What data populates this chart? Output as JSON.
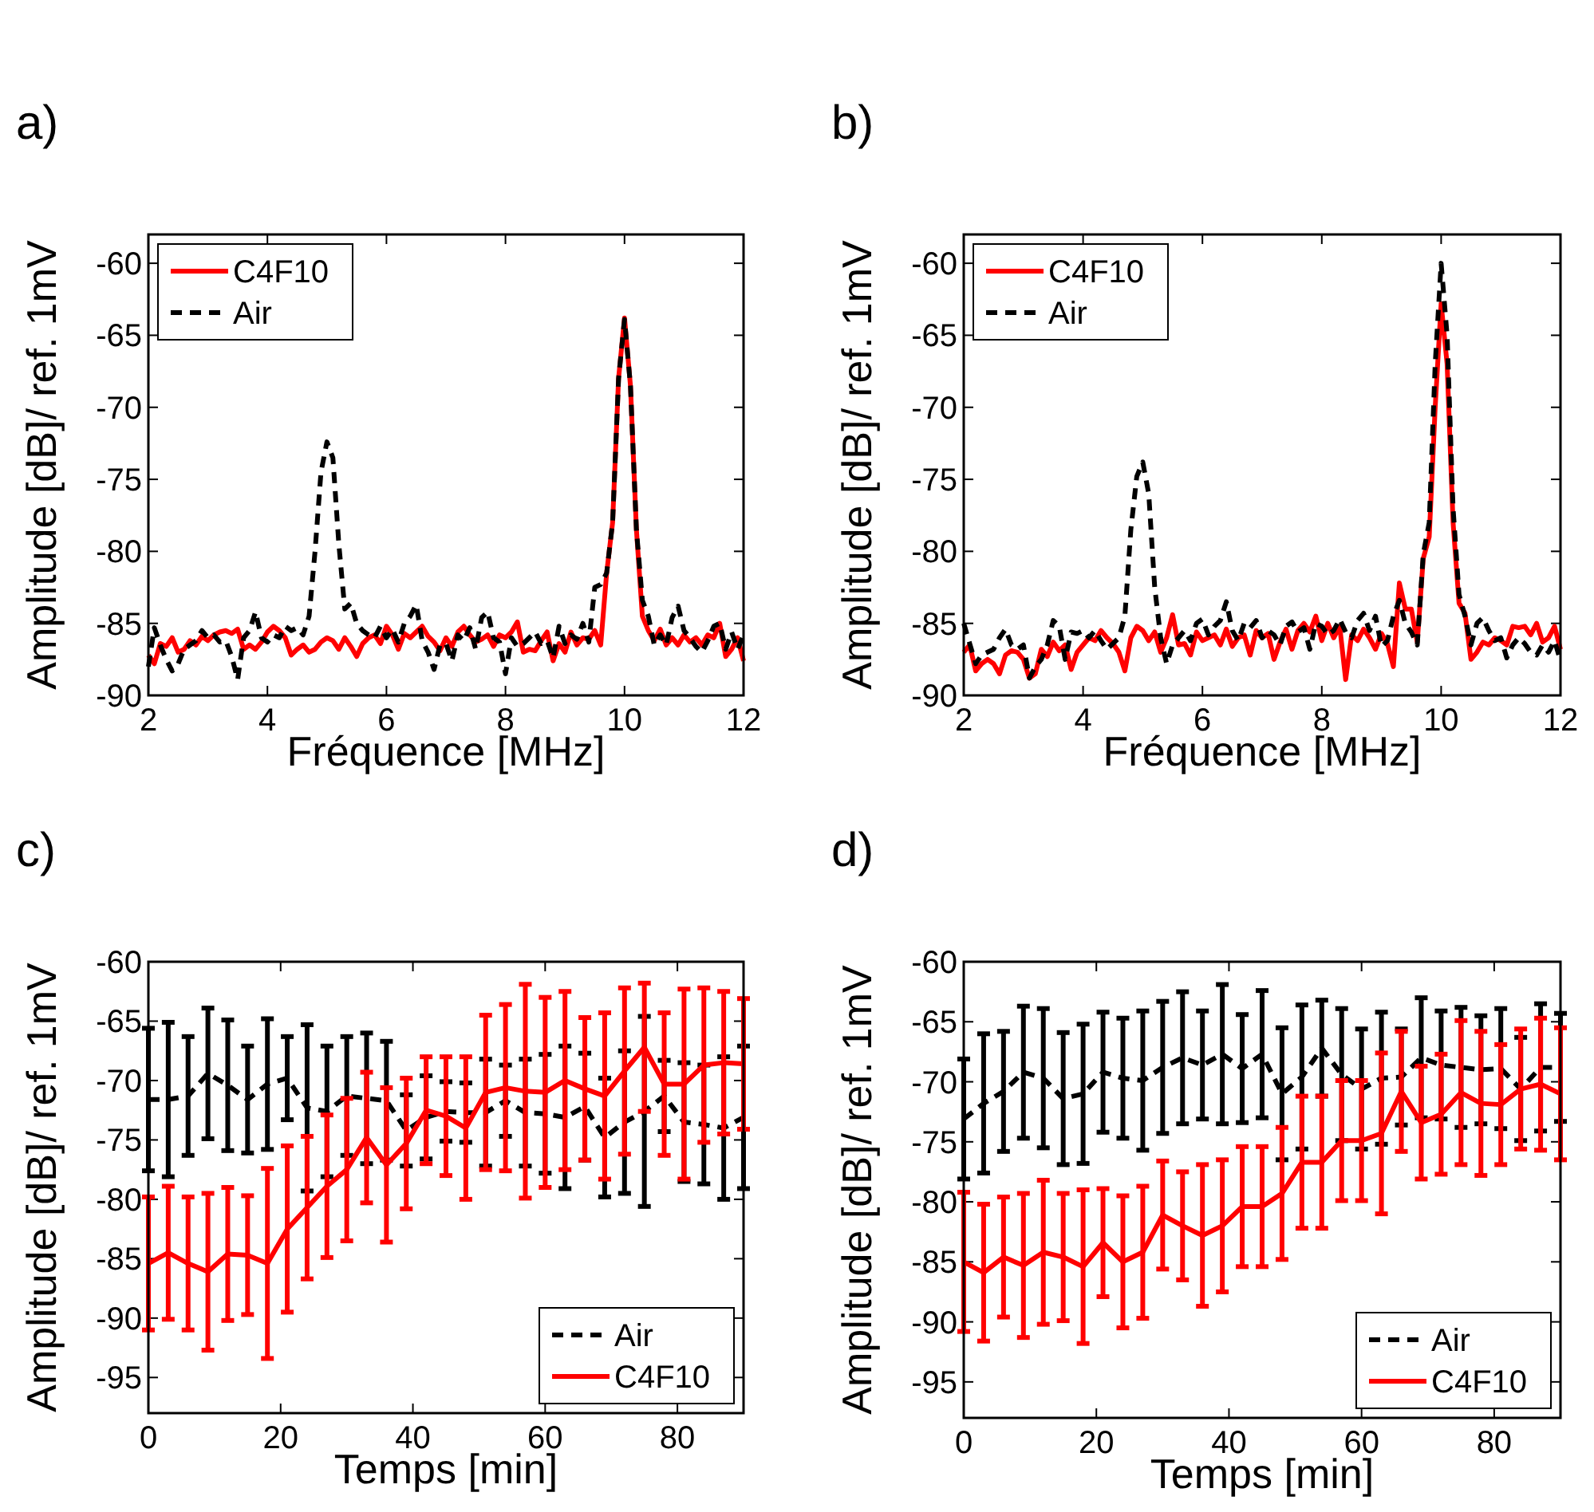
{
  "chart_data": [
    {
      "type": "line",
      "title": "a)",
      "xlabel": "Fréquence [MHz]",
      "ylabel": "Amplitude [dB]/ ref. 1mV",
      "xlim": [
        2,
        12
      ],
      "ylim": [
        -90,
        -58
      ],
      "xticks": [
        2,
        4,
        6,
        8,
        10,
        12
      ],
      "yticks": [
        -90,
        -85,
        -80,
        -75,
        -70,
        -65,
        -60
      ],
      "legend": "top left",
      "marker": "none",
      "x": [
        2.0,
        2.1,
        2.2,
        2.3,
        2.4,
        2.5,
        2.6,
        2.7,
        2.8,
        2.9,
        3.0,
        3.1,
        3.2,
        3.3,
        3.4,
        3.5,
        3.6,
        3.7,
        3.8,
        3.9,
        4.0,
        4.1,
        4.2,
        4.3,
        4.4,
        4.5,
        4.6,
        4.7,
        4.8,
        4.9,
        5.0,
        5.1,
        5.2,
        5.3,
        5.4,
        5.5,
        5.6,
        5.7,
        5.8,
        5.9,
        6.0,
        6.1,
        6.2,
        6.3,
        6.4,
        6.5,
        6.6,
        6.7,
        6.8,
        6.9,
        7.0,
        7.1,
        7.2,
        7.3,
        7.4,
        7.5,
        7.6,
        7.7,
        7.8,
        7.9,
        8.0,
        8.1,
        8.2,
        8.3,
        8.4,
        8.5,
        8.6,
        8.7,
        8.8,
        8.9,
        9.0,
        9.1,
        9.2,
        9.3,
        9.4,
        9.5,
        9.6,
        9.7,
        9.8,
        9.9,
        10.0,
        10.1,
        10.2,
        10.3,
        10.4,
        10.5,
        10.6,
        10.7,
        10.8,
        10.9,
        11.0,
        11.1,
        11.2,
        11.3,
        11.4,
        11.5,
        11.6,
        11.7,
        11.8,
        11.9,
        12.0
      ],
      "series": [
        {
          "name": "C4F10",
          "color": "#ff0000",
          "line_style": "solid",
          "values": [
            -87.2,
            -87.8,
            -86.4,
            -86.6,
            -86.0,
            -87.0,
            -86.8,
            -86.2,
            -86.5,
            -85.9,
            -86.2,
            -85.8,
            -85.6,
            -85.5,
            -85.7,
            -85.4,
            -86.8,
            -86.5,
            -86.8,
            -86.3,
            -85.6,
            -85.2,
            -85.5,
            -86.0,
            -87.2,
            -86.8,
            -86.5,
            -87.0,
            -86.8,
            -86.3,
            -86.0,
            -86.2,
            -86.8,
            -86.0,
            -86.6,
            -87.3,
            -86.4,
            -86.0,
            -85.8,
            -86.4,
            -85.2,
            -85.8,
            -86.8,
            -85.7,
            -86.0,
            -85.6,
            -85.2,
            -85.9,
            -86.3,
            -86.9,
            -86.0,
            -86.6,
            -85.6,
            -85.2,
            -85.8,
            -86.3,
            -86.1,
            -85.8,
            -86.6,
            -85.8,
            -86.0,
            -85.6,
            -84.9,
            -87.0,
            -86.8,
            -86.9,
            -86.2,
            -85.6,
            -87.6,
            -86.4,
            -87.0,
            -85.6,
            -86.5,
            -86.0,
            -86.1,
            -85.5,
            -86.5,
            -81.5,
            -78.0,
            -68.0,
            -63.8,
            -68.5,
            -78.5,
            -84.5,
            -85.5,
            -86.2,
            -85.4,
            -86.5,
            -86.0,
            -86.5,
            -85.8,
            -86.3,
            -86.0,
            -86.5,
            -85.8,
            -86.0,
            -85.0,
            -87.3,
            -86.8,
            -86.0,
            -87.6
          ]
        },
        {
          "name": "Air",
          "color": "#000000",
          "line_style": "dashed",
          "values": [
            -88.0,
            -85.3,
            -86.5,
            -87.5,
            -88.3,
            -87.8,
            -86.8,
            -86.5,
            -86.2,
            -85.5,
            -86.0,
            -85.8,
            -86.3,
            -86.2,
            -87.3,
            -88.9,
            -86.0,
            -85.5,
            -84.2,
            -86.0,
            -86.3,
            -85.8,
            -86.0,
            -85.2,
            -85.5,
            -85.3,
            -85.8,
            -84.5,
            -80.0,
            -74.5,
            -72.4,
            -73.5,
            -79.5,
            -84.0,
            -83.6,
            -85.0,
            -85.5,
            -85.8,
            -86.0,
            -85.2,
            -86.0,
            -85.4,
            -86.3,
            -85.0,
            -84.5,
            -83.7,
            -86.2,
            -87.0,
            -88.2,
            -86.5,
            -86.4,
            -87.6,
            -85.8,
            -86.2,
            -85.3,
            -86.8,
            -84.6,
            -84.2,
            -86.0,
            -86.3,
            -88.5,
            -86.0,
            -86.6,
            -86.4,
            -86.0,
            -85.6,
            -86.4,
            -86.2,
            -87.4,
            -85.2,
            -86.4,
            -85.8,
            -86.1,
            -85.0,
            -86.3,
            -82.5,
            -82.3,
            -81.5,
            -78.0,
            -68.0,
            -63.9,
            -68.5,
            -78.5,
            -83.4,
            -84.5,
            -86.5,
            -85.8,
            -86.5,
            -84.6,
            -83.8,
            -85.5,
            -86.0,
            -86.6,
            -87.0,
            -86.2,
            -85.2,
            -85.0,
            -86.8,
            -85.6,
            -86.8,
            -85.8
          ]
        }
      ]
    },
    {
      "type": "line",
      "title": "b)",
      "xlabel": "Fréquence [MHz]",
      "ylabel": "Amplitude [dB]/ ref. 1mV",
      "xlim": [
        2,
        12
      ],
      "ylim": [
        -90,
        -58
      ],
      "xticks": [
        2,
        4,
        6,
        8,
        10,
        12
      ],
      "yticks": [
        -90,
        -85,
        -80,
        -75,
        -70,
        -65,
        -60
      ],
      "legend": "top left",
      "marker": "none",
      "x": [
        2.0,
        2.1,
        2.2,
        2.3,
        2.4,
        2.5,
        2.6,
        2.7,
        2.8,
        2.9,
        3.0,
        3.1,
        3.2,
        3.3,
        3.4,
        3.5,
        3.6,
        3.7,
        3.8,
        3.9,
        4.0,
        4.1,
        4.2,
        4.3,
        4.4,
        4.5,
        4.6,
        4.7,
        4.8,
        4.9,
        5.0,
        5.1,
        5.2,
        5.3,
        5.4,
        5.5,
        5.6,
        5.7,
        5.8,
        5.9,
        6.0,
        6.1,
        6.2,
        6.3,
        6.4,
        6.5,
        6.6,
        6.7,
        6.8,
        6.9,
        7.0,
        7.1,
        7.2,
        7.3,
        7.4,
        7.5,
        7.6,
        7.7,
        7.8,
        7.9,
        8.0,
        8.1,
        8.2,
        8.3,
        8.4,
        8.5,
        8.6,
        8.7,
        8.8,
        8.9,
        9.0,
        9.1,
        9.2,
        9.3,
        9.4,
        9.5,
        9.6,
        9.7,
        9.8,
        9.9,
        10.0,
        10.1,
        10.2,
        10.3,
        10.4,
        10.5,
        10.6,
        10.7,
        10.8,
        10.9,
        11.0,
        11.1,
        11.2,
        11.3,
        11.4,
        11.5,
        11.6,
        11.7,
        11.8,
        11.9,
        12.0
      ],
      "series": [
        {
          "name": "C4F10",
          "color": "#ff0000",
          "line_style": "solid",
          "values": [
            -87.0,
            -86.5,
            -88.3,
            -87.8,
            -87.5,
            -87.8,
            -88.5,
            -87.2,
            -86.9,
            -87.0,
            -87.5,
            -88.8,
            -88.5,
            -86.8,
            -87.3,
            -86.3,
            -86.9,
            -86.5,
            -88.2,
            -87.0,
            -86.5,
            -86.0,
            -86.2,
            -85.5,
            -86.0,
            -86.4,
            -87.0,
            -88.3,
            -86.0,
            -85.2,
            -85.5,
            -86.2,
            -85.6,
            -87.0,
            -86.0,
            -84.4,
            -86.5,
            -86.4,
            -87.2,
            -85.6,
            -86.2,
            -86.0,
            -85.8,
            -86.5,
            -85.4,
            -86.6,
            -86.0,
            -85.8,
            -87.2,
            -85.5,
            -86.0,
            -85.7,
            -87.5,
            -86.3,
            -85.4,
            -86.8,
            -85.5,
            -85.0,
            -85.6,
            -84.5,
            -86.2,
            -85.0,
            -86.0,
            -85.2,
            -88.9,
            -85.8,
            -86.2,
            -85.4,
            -86.0,
            -86.8,
            -85.7,
            -86.4,
            -88.0,
            -82.2,
            -84.0,
            -84.0,
            -86.3,
            -80.5,
            -79.0,
            -70.0,
            -62.8,
            -67.0,
            -78.0,
            -83.6,
            -84.3,
            -87.5,
            -87.0,
            -86.3,
            -86.5,
            -86.0,
            -86.2,
            -86.5,
            -85.2,
            -85.3,
            -85.2,
            -85.8,
            -85.0,
            -86.3,
            -86.0,
            -85.2,
            -86.8
          ]
        },
        {
          "name": "Air",
          "color": "#000000",
          "line_style": "dashed",
          "values": [
            -85.0,
            -86.4,
            -87.8,
            -87.2,
            -87.0,
            -86.8,
            -86.0,
            -85.4,
            -86.5,
            -86.8,
            -86.5,
            -88.8,
            -88.0,
            -87.5,
            -86.5,
            -84.8,
            -85.2,
            -87.5,
            -85.6,
            -85.7,
            -85.5,
            -86.0,
            -85.5,
            -86.2,
            -86.8,
            -86.4,
            -86.0,
            -84.5,
            -78.5,
            -74.8,
            -73.8,
            -76.0,
            -82.5,
            -86.0,
            -87.8,
            -86.5,
            -86.0,
            -85.5,
            -86.2,
            -85.0,
            -84.7,
            -85.8,
            -85.2,
            -84.8,
            -83.5,
            -85.5,
            -86.2,
            -85.0,
            -85.3,
            -84.8,
            -86.0,
            -85.5,
            -85.8,
            -86.5,
            -85.2,
            -84.9,
            -85.6,
            -85.3,
            -86.8,
            -85.0,
            -85.2,
            -85.8,
            -85.5,
            -84.7,
            -85.6,
            -86.0,
            -84.8,
            -84.3,
            -85.5,
            -84.5,
            -86.6,
            -86.2,
            -84.5,
            -83.4,
            -85.0,
            -85.6,
            -86.5,
            -80.2,
            -78.0,
            -67.0,
            -60.0,
            -65.0,
            -77.0,
            -83.0,
            -84.5,
            -86.5,
            -85.0,
            -84.6,
            -85.5,
            -86.2,
            -86.0,
            -87.4,
            -86.5,
            -86.0,
            -86.4,
            -87.0,
            -87.2,
            -86.5,
            -87.0,
            -86.2,
            -87.6
          ]
        }
      ]
    },
    {
      "type": "line",
      "title": "c)",
      "xlabel": "Temps [min]",
      "ylabel": "Amplitude [dB]/ ref. 1mV",
      "xlim": [
        0,
        90
      ],
      "ylim": [
        -98,
        -60
      ],
      "xticks": [
        0,
        20,
        40,
        60,
        80
      ],
      "yticks": [
        -95,
        -90,
        -85,
        -80,
        -75,
        -70,
        -65,
        -60
      ],
      "legend": "bottom right",
      "marker": "none",
      "x": [
        0,
        3,
        6,
        9,
        12,
        15,
        18,
        21,
        24,
        27,
        30,
        33,
        36,
        39,
        42,
        45,
        48,
        51,
        54,
        57,
        60,
        63,
        66,
        69,
        72,
        75,
        78,
        81,
        84,
        87,
        90
      ],
      "series": [
        {
          "name": "Air",
          "color": "#000000",
          "line_style": "dashed",
          "values": [
            -71.6,
            -71.6,
            -71.3,
            -69.4,
            -70.4,
            -71.6,
            -70.3,
            -69.8,
            -72.3,
            -72.6,
            -71.3,
            -71.5,
            -71.7,
            -74.2,
            -73.1,
            -72.6,
            -72.7,
            -72.7,
            -71.7,
            -72.7,
            -72.8,
            -73.1,
            -72.2,
            -74.8,
            -73.5,
            -72.6,
            -71.3,
            -73.5,
            -73.7,
            -74.0,
            -73.1
          ],
          "errors": [
            6,
            6.5,
            5,
            5.5,
            5.5,
            4.5,
            5.5,
            3.5,
            7,
            5.5,
            5,
            5.5,
            5,
            3,
            3.5,
            2.5,
            2.5,
            4.5,
            3,
            4.5,
            5,
            6,
            4.5,
            5,
            6,
            8,
            3,
            5,
            5,
            6,
            6
          ]
        },
        {
          "name": "C4F10",
          "color": "#ff0000",
          "line_style": "solid",
          "values": [
            -85.4,
            -84.5,
            -85.4,
            -86.1,
            -84.6,
            -84.7,
            -85.4,
            -82.5,
            -80.7,
            -78.9,
            -77.5,
            -74.8,
            -77.1,
            -75.3,
            -72.5,
            -73.0,
            -74.0,
            -71.0,
            -70.6,
            -70.9,
            -71.0,
            -70.0,
            -70.7,
            -71.3,
            -69.2,
            -67.2,
            -70.3,
            -70.3,
            -68.7,
            -68.5,
            -68.6
          ],
          "errors": [
            5.6,
            5.6,
            5.6,
            6.6,
            5.6,
            5,
            8,
            7,
            6,
            6,
            6,
            5.5,
            6.5,
            5.5,
            4.5,
            5,
            6,
            6.5,
            7,
            9,
            8,
            7.5,
            6,
            7,
            7,
            5.4,
            6,
            8,
            6.5,
            6,
            5.5
          ]
        }
      ]
    },
    {
      "type": "line",
      "title": "d)",
      "xlabel": "Temps [min]",
      "ylabel": "Amplitude [dB]/ ref. 1mV",
      "xlim": [
        0,
        90
      ],
      "ylim": [
        -98,
        -60
      ],
      "xticks": [
        0,
        20,
        40,
        60,
        80
      ],
      "yticks": [
        -95,
        -90,
        -85,
        -80,
        -75,
        -70,
        -65,
        -60
      ],
      "legend": "bottom right",
      "marker": "none",
      "x": [
        0,
        3,
        6,
        9,
        12,
        15,
        18,
        21,
        24,
        27,
        30,
        33,
        36,
        39,
        42,
        45,
        48,
        51,
        54,
        57,
        60,
        63,
        66,
        69,
        72,
        75,
        78,
        81,
        84,
        87,
        90
      ],
      "series": [
        {
          "name": "Air",
          "color": "#000000",
          "line_style": "dashed",
          "values": [
            -73.1,
            -71.8,
            -70.8,
            -69.2,
            -69.7,
            -71.4,
            -71.0,
            -69.2,
            -69.7,
            -69.9,
            -68.8,
            -68.0,
            -68.6,
            -67.7,
            -68.9,
            -67.7,
            -71.0,
            -69.6,
            -67.2,
            -69.4,
            -70.6,
            -69.7,
            -69.6,
            -68.0,
            -68.6,
            -68.8,
            -69.0,
            -68.9,
            -70.6,
            -68.8,
            -68.8
          ],
          "errors": [
            5,
            5.8,
            5,
            5.5,
            5.8,
            5.5,
            5.8,
            5,
            5,
            5.8,
            5.5,
            5.5,
            4.5,
            5.8,
            4.5,
            5.3,
            5.5,
            6,
            4,
            5.5,
            5,
            5.5,
            4,
            5,
            4.5,
            5,
            4.5,
            5,
            4.3,
            5.3,
            4.5
          ]
        },
        {
          "name": "C4F10",
          "color": "#ff0000",
          "line_style": "solid",
          "values": [
            -85.0,
            -85.9,
            -84.6,
            -85.3,
            -84.2,
            -84.6,
            -85.4,
            -83.4,
            -85.0,
            -84.2,
            -81.1,
            -82.0,
            -82.8,
            -82.0,
            -80.4,
            -80.4,
            -79.3,
            -76.7,
            -76.7,
            -74.9,
            -74.9,
            -74.3,
            -70.8,
            -73.4,
            -72.7,
            -70.9,
            -71.8,
            -71.9,
            -70.6,
            -70.2,
            -71.0
          ],
          "errors": [
            5.8,
            5.7,
            5,
            6,
            6,
            5.3,
            6.4,
            4.5,
            5.5,
            5.5,
            4.5,
            4.5,
            5.9,
            5.5,
            5,
            5,
            5.5,
            5.5,
            5.5,
            5,
            5,
            6.7,
            5,
            4.7,
            5,
            6,
            6,
            5,
            5,
            5.5,
            5.5
          ]
        }
      ]
    }
  ]
}
